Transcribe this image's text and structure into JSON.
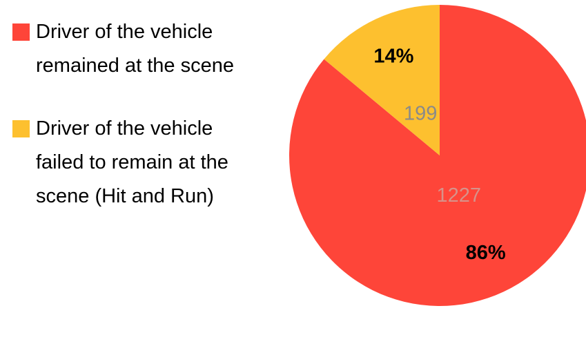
{
  "chart_data": {
    "type": "pie",
    "categories": [
      "Driver of the vehicle remained at the scene",
      "Driver of the vehicle failed to remain at the scene (Hit and Run)"
    ],
    "values": [
      1227,
      199
    ],
    "percent_labels": [
      "86%",
      "14%"
    ],
    "colors": [
      "#fe4539",
      "#fdc02f"
    ],
    "start_angle": 0,
    "direction": "clockwise",
    "legend": "left"
  }
}
